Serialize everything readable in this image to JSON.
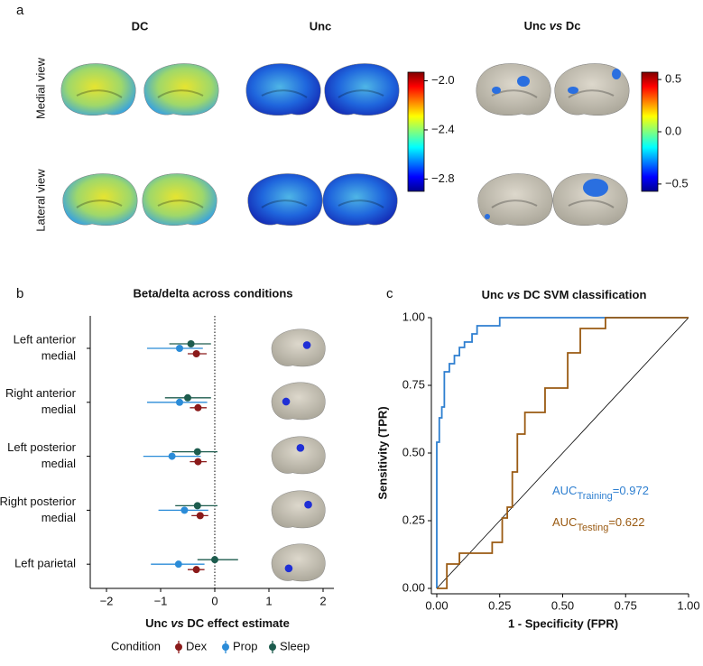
{
  "panel_a": {
    "label": "a",
    "columns": [
      "DC",
      "Unc"
    ],
    "column3_parts": [
      "Unc ",
      "vs",
      " Dc"
    ],
    "rows": [
      "Medial view",
      "Lateral view"
    ],
    "colorbar1": {
      "ylim": [
        -2.9,
        -1.93
      ],
      "yticks": [
        {
          "value": -2.0,
          "label": "−2.0"
        },
        {
          "value": -2.4,
          "label": "−2.4"
        },
        {
          "value": -2.8,
          "label": "−2.8"
        }
      ]
    },
    "colorbar2": {
      "ylim": [
        -0.57,
        0.57
      ],
      "yticks": [
        0.5,
        {
          "value": 0.0,
          "label": "0.0"
        },
        {
          "value": -0.5,
          "label": "−0.5"
        }
      ]
    }
  },
  "chart_data": [
    {
      "type": "forest",
      "label": "b",
      "title": "Beta/delta across conditions",
      "categories": [
        [
          "Left anterior",
          "medial"
        ],
        [
          "Right anterior",
          "medial"
        ],
        [
          "Left posterior",
          "medial"
        ],
        [
          "Right posterior",
          "medial"
        ],
        [
          "Left parietal"
        ]
      ],
      "x_label_parts": [
        "Unc ",
        "vs",
        " DC effect estimate"
      ],
      "legend_title": "Condition",
      "xlim": [
        -2.3,
        2.2
      ],
      "xticks": [
        {
          "value": -2,
          "label": "−2"
        },
        {
          "value": -1,
          "label": "−1"
        },
        0,
        1,
        2
      ],
      "series": [
        {
          "name": "Dex",
          "color": "#8b1a1a",
          "values": [
            -0.34,
            -0.31,
            -0.31,
            -0.27,
            -0.34
          ],
          "lower": [
            -0.5,
            -0.46,
            -0.46,
            -0.43,
            -0.5
          ],
          "upper": [
            -0.15,
            -0.15,
            -0.15,
            -0.12,
            -0.19
          ]
        },
        {
          "name": "Prop",
          "color": "#2b8cd8",
          "values": [
            -0.65,
            -0.65,
            -0.79,
            -0.56,
            -0.67
          ],
          "lower": [
            -1.25,
            -1.25,
            -1.32,
            -1.04,
            -1.18
          ],
          "upper": [
            -0.22,
            -0.14,
            -0.26,
            -0.12,
            -0.19
          ]
        },
        {
          "name": "Sleep",
          "color": "#1d5c4e",
          "values": [
            -0.44,
            -0.5,
            -0.32,
            -0.32,
            0.0
          ],
          "lower": [
            -0.84,
            -0.92,
            -0.79,
            -0.73,
            -0.32
          ],
          "upper": [
            -0.07,
            -0.07,
            0.05,
            0.05,
            0.43
          ]
        }
      ]
    },
    {
      "type": "roc",
      "label": "c",
      "title_parts": [
        "Unc ",
        "vs",
        " DC SVM classification"
      ],
      "x_label": "1 - Specificity (FPR)",
      "y_label": "Sensitivity (TPR)",
      "xlim": [
        0,
        1
      ],
      "ylim": [
        0,
        1
      ],
      "xticks": [
        {
          "value": 0,
          "label": "0.00"
        },
        {
          "value": 0.25,
          "label": "0.25"
        },
        {
          "value": 0.5,
          "label": "0.50"
        },
        {
          "value": 0.75,
          "label": "0.75"
        },
        {
          "value": 1,
          "label": "1.00"
        }
      ],
      "yticks": [
        {
          "value": 0,
          "label": "0.00"
        },
        {
          "value": 0.25,
          "label": "0.25"
        },
        {
          "value": 0.5,
          "label": "0.50"
        },
        {
          "value": 0.75,
          "label": "0.75"
        },
        {
          "value": 1,
          "label": "1.00"
        }
      ],
      "series": [
        {
          "name_parts": [
            "AUC",
            "Training",
            "=0.972"
          ],
          "color": "#2e7fd0",
          "x": [
            0,
            0,
            0.01,
            0.01,
            0.02,
            0.02,
            0.03,
            0.03,
            0.05,
            0.05,
            0.07,
            0.07,
            0.09,
            0.09,
            0.11,
            0.11,
            0.14,
            0.14,
            0.16,
            0.16,
            0.25,
            0.25,
            1.0
          ],
          "values": [
            0,
            0.54,
            0.54,
            0.63,
            0.63,
            0.67,
            0.67,
            0.8,
            0.8,
            0.83,
            0.83,
            0.86,
            0.86,
            0.89,
            0.89,
            0.91,
            0.91,
            0.94,
            0.94,
            0.97,
            0.97,
            1.0,
            1.0
          ]
        },
        {
          "name_parts": [
            "AUC",
            "Testing",
            "=0.622"
          ],
          "color": "#9a5a12",
          "x": [
            0,
            0.04,
            0.04,
            0.09,
            0.09,
            0.22,
            0.22,
            0.26,
            0.26,
            0.28,
            0.28,
            0.3,
            0.3,
            0.32,
            0.32,
            0.35,
            0.35,
            0.43,
            0.43,
            0.52,
            0.52,
            0.57,
            0.57,
            0.67,
            0.67,
            1.0
          ],
          "values": [
            0,
            0,
            0.09,
            0.09,
            0.13,
            0.13,
            0.17,
            0.17,
            0.26,
            0.26,
            0.3,
            0.3,
            0.43,
            0.43,
            0.57,
            0.57,
            0.65,
            0.65,
            0.74,
            0.74,
            0.87,
            0.87,
            0.96,
            0.96,
            1.0,
            1.0
          ]
        }
      ]
    }
  ]
}
